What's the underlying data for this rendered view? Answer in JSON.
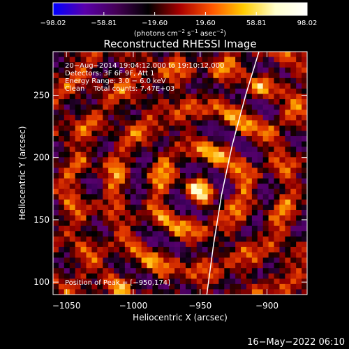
{
  "chart_data": {
    "type": "heatmap",
    "title": "Reconstructed RHESSI Image",
    "xlabel": "Heliocentric X (arcsec)",
    "ylabel": "Heliocentric Y (arcsec)",
    "xlim": [
      -1060,
      -870
    ],
    "ylim": [
      90,
      285
    ],
    "x_ticks": [
      -1050,
      -1000,
      -950,
      -900
    ],
    "x_tick_labels": [
      "−1050",
      "−1000",
      "−950",
      "−900"
    ],
    "y_ticks": [
      100,
      150,
      200,
      250
    ],
    "y_tick_labels": [
      "100",
      "150",
      "200",
      "250"
    ],
    "colorbar": {
      "min": -98.02,
      "max": 98.02,
      "ticks": [
        -98.02,
        -58.81,
        -19.6,
        19.6,
        58.81,
        98.02
      ],
      "tick_labels": [
        "−98.02",
        "−58.81",
        "−19.60",
        "19.60",
        "58.81",
        "98.02"
      ],
      "unit_main": "(photons cm",
      "unit_sup1": "−2",
      "unit_mid": " s",
      "unit_sup2": "−1",
      "unit_mid2": " asec",
      "unit_sup3": "−2",
      "unit_end": ")",
      "colormap": [
        "#0000ff",
        "#5a00aa",
        "#440055",
        "#000000",
        "#aa0000",
        "#ff5500",
        "#ffcc00",
        "#ffffcc",
        "#ffffff"
      ]
    },
    "info_lines": [
      "20−Aug−2014 19:04:12.000 to 19:10:12.000",
      "Detectors: 3F 6F 9F, Att 1",
      "Energy Range: 3.0 −  6.0 keV",
      "Clean    Total counts: 7.47E+03"
    ],
    "peak_label": "Position of Peak = [−950,174]",
    "peak": [
      -950,
      174
    ],
    "limb_curve": [
      [
        -945,
        90
      ],
      [
        -940,
        130
      ],
      [
        -934,
        170
      ],
      [
        -926,
        210
      ],
      [
        -916,
        250
      ],
      [
        -906,
        285
      ]
    ]
  },
  "footer_date": "16−May−2022 06:10"
}
